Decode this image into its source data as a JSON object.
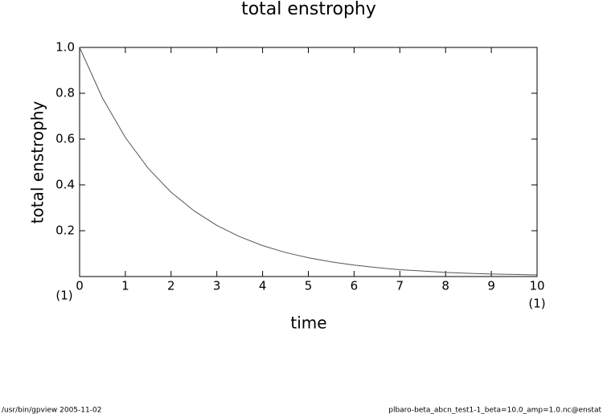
{
  "chart_data": {
    "type": "line",
    "title": "total enstrophy",
    "x_label": "time",
    "y_label": "total enstrophy",
    "x_unit_label": "(1)",
    "y_unit_label": "(1)",
    "x": [
      0,
      0.5,
      1,
      1.5,
      2,
      2.5,
      3,
      3.5,
      4,
      4.5,
      5,
      5.5,
      6,
      6.5,
      7,
      7.5,
      8,
      8.5,
      9,
      9.5,
      10
    ],
    "values": [
      1,
      0.779,
      0.607,
      0.472,
      0.368,
      0.287,
      0.223,
      0.174,
      0.135,
      0.105,
      0.082,
      0.064,
      0.05,
      0.039,
      0.03,
      0.024,
      0.018,
      0.014,
      0.011,
      0.009,
      0.007
    ],
    "color": "#555555",
    "xlim": [
      0,
      10
    ],
    "ylim": [
      0,
      1
    ],
    "xticks": [
      0,
      1,
      2,
      3,
      4,
      5,
      6,
      7,
      8,
      9,
      10
    ],
    "yticks": [
      0.2,
      0.4,
      0.6,
      0.8,
      {
        "value": 1,
        "label": "1.0"
      }
    ]
  },
  "footer": {
    "left": "/usr/bin/gpview   2005-11-02",
    "right": "plbaro-beta_abcn_test1-1_beta=10.0_amp=1.0.nc@enstat"
  }
}
